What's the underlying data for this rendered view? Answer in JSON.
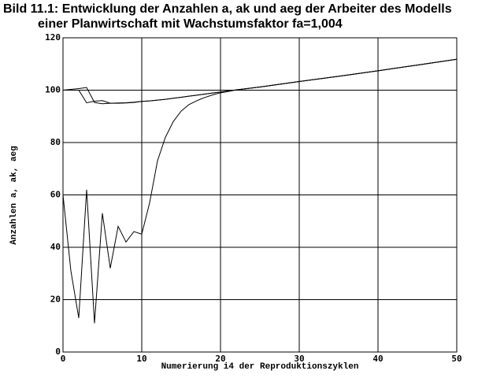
{
  "chart_data": {
    "type": "line",
    "title": [
      "Bild 11.1: Entwicklung der Anzahlen a, ak und aeg der Arbeiter des Modells",
      "einer Planwirtschaft mit Wachstumsfaktor fa=1,004"
    ],
    "xlabel": "Numerierung i4 der Reproduktionszyklen",
    "ylabel": "Anzahlen a, ak, aeg",
    "x": [
      0,
      1,
      2,
      3,
      4,
      5,
      6,
      7,
      8,
      9,
      10,
      11,
      12,
      13,
      14,
      15,
      16,
      17,
      18,
      19,
      20,
      21,
      22,
      25,
      30,
      35,
      40,
      45,
      50
    ],
    "series": [
      {
        "color": "#000000",
        "values": [
          100,
          100.3,
          100.6,
          101,
          95.3,
          94.8,
          95,
          95.1,
          95.2,
          95.4,
          95.7,
          95.9,
          96.2,
          96.5,
          96.9,
          97.3,
          97.7,
          98.1,
          98.5,
          98.9,
          99.3,
          99.7,
          100.1,
          101.2,
          103.3,
          105.3,
          107.4,
          109.6,
          111.8
        ]
      },
      {
        "color": "#000000",
        "values": [
          100,
          100,
          100,
          95.2,
          95.8,
          96,
          95,
          95,
          95.1,
          95.3,
          95.7,
          95.9,
          96.2,
          96.5,
          96.9,
          97.3,
          97.7,
          98.1,
          98.5,
          98.9,
          99.3,
          99.7,
          100.1,
          101.2,
          103.3,
          105.3,
          107.4,
          109.6,
          111.8
        ]
      },
      {
        "color": "#000000",
        "values": [
          60,
          31,
          13,
          62,
          11,
          53,
          32,
          48,
          42,
          46,
          45,
          57,
          73,
          82,
          88,
          92,
          94.5,
          96,
          97.2,
          98.2,
          99,
          99.5,
          100.1,
          101.2,
          103.3,
          105.3,
          107.4,
          109.6,
          111.8
        ]
      }
    ],
    "xlim": [
      0,
      50
    ],
    "xticks": [
      0,
      10,
      20,
      30,
      40,
      50
    ],
    "ylim": [
      0,
      120
    ],
    "yticks": [
      0,
      20,
      40,
      60,
      80,
      100,
      120
    ],
    "grid": true
  }
}
